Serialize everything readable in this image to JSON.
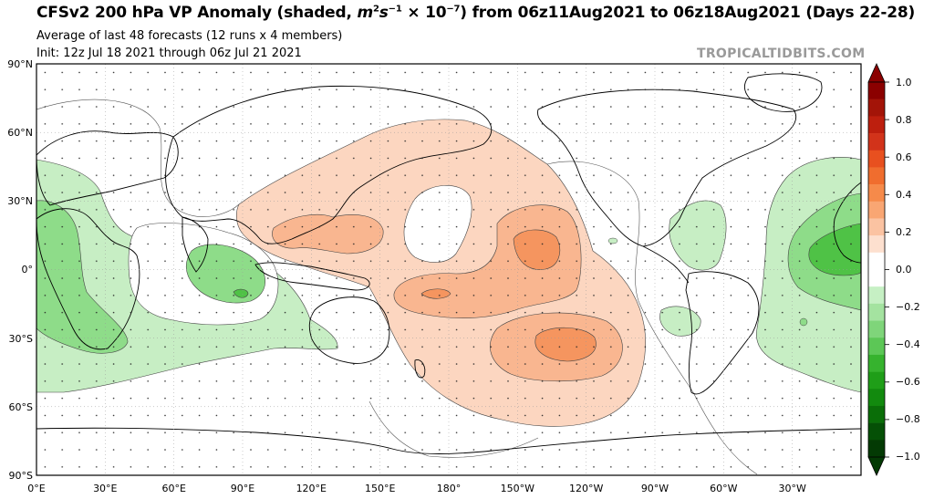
{
  "header": {
    "title_pre": "CFSv2 200 hPa VP Anomaly (shaded, ",
    "title_unit_m": "m",
    "title_unit_exp1": "2",
    "title_unit_s": "s",
    "title_unit_exp2": "−1",
    "title_unit_times": " × 10",
    "title_unit_exp3": "−7",
    "title_post": ") from 06z11Aug2021 to 06z18Aug2021 (Days 22-28)",
    "subtitle": "Average of last 48 forecasts (12 runs x 4 members)",
    "init": "Init: 12z Jul 18 2021 through 06z Jul 21 2021",
    "watermark": "TROPICALTIDBITS.COM"
  },
  "map": {
    "lat_labels": [
      "90°N",
      "60°N",
      "30°N",
      "0°",
      "30°S",
      "60°S",
      "90°S"
    ],
    "lon_labels": [
      "0°E",
      "30°E",
      "60°E",
      "90°E",
      "120°E",
      "150°E",
      "180°",
      "150°W",
      "120°W",
      "90°W",
      "60°W",
      "30°W"
    ]
  },
  "colorbar": {
    "labels": [
      "1.0",
      "0.8",
      "0.6",
      "0.4",
      "0.2",
      "0.0",
      "−0.2",
      "−0.4",
      "−0.6",
      "−0.8",
      "−1.0"
    ],
    "colors": [
      "#8b0000",
      "#a31408",
      "#bd1f0e",
      "#d2331a",
      "#e8501f",
      "#f06d2e",
      "#f68a4a",
      "#f9a673",
      "#fbc3a2",
      "#fde0cf",
      "#ffffff",
      "#ffffff",
      "#c6f0c4",
      "#a4e3a0",
      "#7fd57a",
      "#5cc756",
      "#36b32e",
      "#1f9e18",
      "#128a0e",
      "#0a6e08",
      "#055006",
      "#033a04"
    ]
  },
  "legend_colors": {
    "pos_light": "#fcd6c0",
    "pos_mid": "#f9b690",
    "pos_strong": "#f5955f",
    "neg_light": "#c7eec4",
    "neg_mid": "#8edc89",
    "neg_strong": "#4fc246"
  }
}
